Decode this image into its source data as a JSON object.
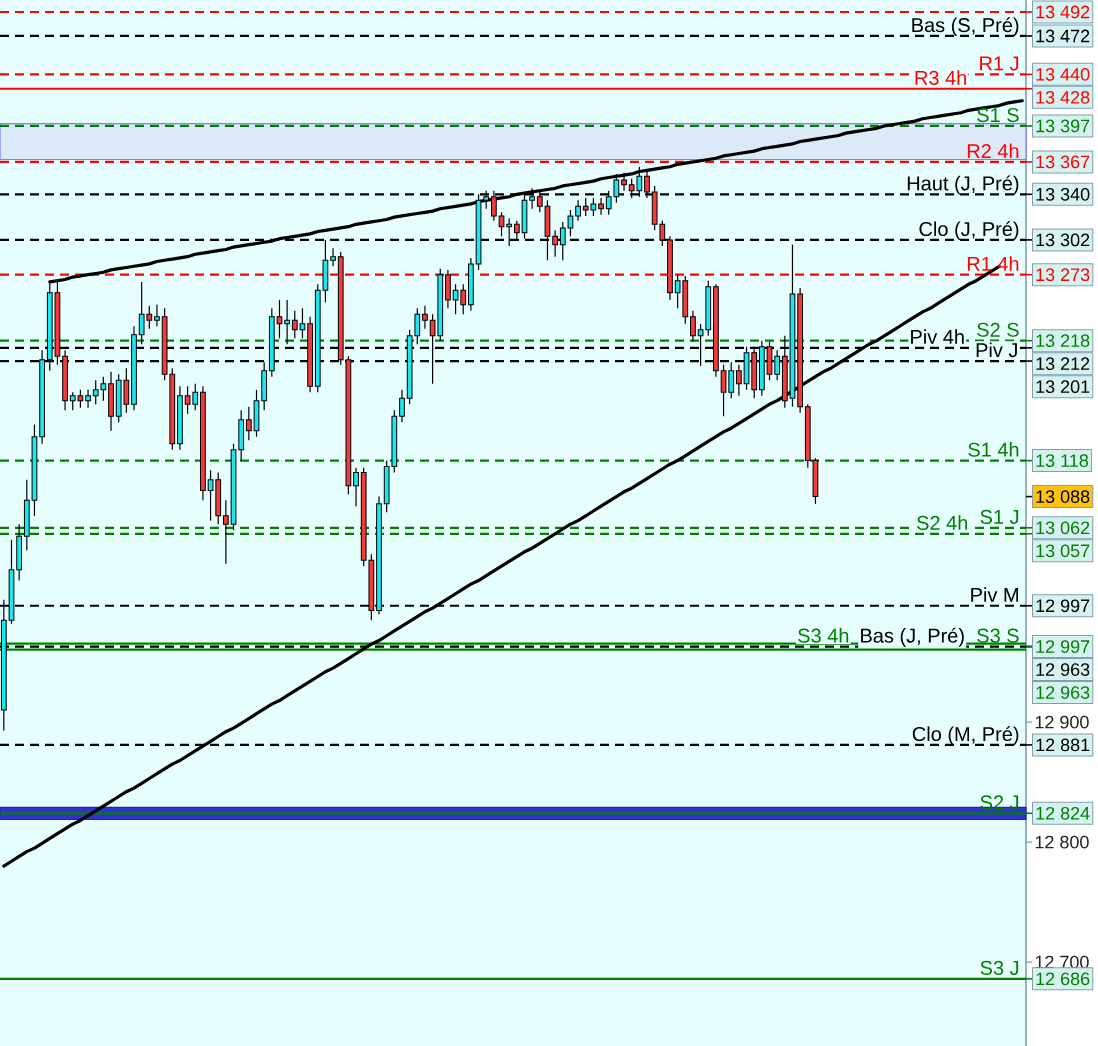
{
  "chart_data": {
    "type": "candlestick",
    "categories": [
      null,
      null,
      null,
      null,
      null,
      null,
      null,
      null,
      null,
      null,
      null,
      null,
      null,
      null,
      null,
      null,
      null,
      null,
      null,
      null,
      null,
      null,
      null,
      null,
      null,
      null,
      null,
      null,
      null,
      null,
      null,
      null,
      null,
      null,
      null,
      null,
      null,
      null,
      null,
      null,
      null,
      null,
      null,
      null,
      null,
      null,
      null,
      null,
      null,
      null,
      null,
      null,
      null,
      null,
      null,
      null,
      null,
      null,
      null,
      null,
      null,
      null,
      null,
      null,
      null,
      null,
      null,
      null,
      null,
      null,
      null,
      null,
      null,
      null,
      null,
      null,
      null,
      null,
      null,
      null,
      null,
      null,
      null,
      null,
      null,
      null,
      null,
      null,
      null,
      null,
      null,
      null,
      null,
      null,
      null,
      null,
      null,
      null,
      null,
      null,
      null,
      null,
      null,
      null,
      null,
      null,
      null,
      null,
      null,
      null,
      null,
      null,
      null,
      null,
      null,
      null,
      null,
      null,
      null,
      null,
      null,
      null,
      null,
      null,
      null,
      null,
      null,
      null,
      null,
      null,
      null,
      null,
      null,
      null
    ],
    "ohlc": [
      [
        12910,
        13002,
        12893,
        12985
      ],
      [
        12985,
        13052,
        12982,
        13027
      ],
      [
        13027,
        13065,
        13018,
        13055
      ],
      [
        13055,
        13102,
        13043,
        13085
      ],
      [
        13085,
        13148,
        13072,
        13138
      ],
      [
        13138,
        13210,
        13132,
        13202
      ],
      [
        13202,
        13267,
        13193,
        13258
      ],
      [
        13258,
        13267,
        13198,
        13205
      ],
      [
        13205,
        13210,
        13160,
        13168
      ],
      [
        13168,
        13175,
        13160,
        13172
      ],
      [
        13172,
        13177,
        13162,
        13168
      ],
      [
        13168,
        13177,
        13162,
        13172
      ],
      [
        13172,
        13185,
        13165,
        13177
      ],
      [
        13177,
        13188,
        13168,
        13182
      ],
      [
        13182,
        13192,
        13143,
        13155
      ],
      [
        13155,
        13190,
        13150,
        13185
      ],
      [
        13185,
        13195,
        13158,
        13165
      ],
      [
        13165,
        13230,
        13160,
        13223
      ],
      [
        13223,
        13267,
        13215,
        13240
      ],
      [
        13240,
        13247,
        13228,
        13235
      ],
      [
        13235,
        13248,
        13230,
        13238
      ],
      [
        13238,
        13245,
        13185,
        13190
      ],
      [
        13190,
        13195,
        13127,
        13132
      ],
      [
        13132,
        13180,
        13127,
        13172
      ],
      [
        13172,
        13180,
        13157,
        13165
      ],
      [
        13165,
        13182,
        13160,
        13175
      ],
      [
        13175,
        13180,
        13085,
        13093
      ],
      [
        13093,
        13110,
        13068,
        13102
      ],
      [
        13102,
        13108,
        13065,
        13072
      ],
      [
        13072,
        13085,
        13032,
        13065
      ],
      [
        13065,
        13132,
        13060,
        13127
      ],
      [
        13127,
        13160,
        13118,
        13152
      ],
      [
        13152,
        13163,
        13135,
        13143
      ],
      [
        13143,
        13177,
        13138,
        13168
      ],
      [
        13168,
        13200,
        13160,
        13193
      ],
      [
        13193,
        13245,
        13188,
        13238
      ],
      [
        13238,
        13252,
        13220,
        13232
      ],
      [
        13232,
        13252,
        13215,
        13235
      ],
      [
        13235,
        13243,
        13220,
        13227
      ],
      [
        13227,
        13245,
        13220,
        13232
      ],
      [
        13232,
        13238,
        13175,
        13180
      ],
      [
        13180,
        13265,
        13175,
        13260
      ],
      [
        13260,
        13302,
        13250,
        13285
      ],
      [
        13285,
        13295,
        13280,
        13288
      ],
      [
        13288,
        13292,
        13198,
        13202
      ],
      [
        13202,
        13205,
        13090,
        13097
      ],
      [
        13097,
        13112,
        13080,
        13108
      ],
      [
        13108,
        13112,
        13030,
        13035
      ],
      [
        13035,
        13040,
        12985,
        12993
      ],
      [
        12993,
        13088,
        12990,
        13082
      ],
      [
        13082,
        13118,
        13075,
        13113
      ],
      [
        13113,
        13160,
        13108,
        13155
      ],
      [
        13155,
        13177,
        13150,
        13170
      ],
      [
        13170,
        13227,
        13165,
        13222
      ],
      [
        13222,
        13245,
        13215,
        13240
      ],
      [
        13240,
        13247,
        13228,
        13235
      ],
      [
        13235,
        13240,
        13182,
        13222
      ],
      [
        13222,
        13278,
        13218,
        13273
      ],
      [
        13273,
        13277,
        13245,
        13252
      ],
      [
        13252,
        13265,
        13240,
        13260
      ],
      [
        13260,
        13265,
        13240,
        13248
      ],
      [
        13248,
        13287,
        13243,
        13282
      ],
      [
        13282,
        13340,
        13277,
        13335
      ],
      [
        13335,
        13343,
        13328,
        13338
      ],
      [
        13338,
        13343,
        13318,
        13322
      ],
      [
        13322,
        13325,
        13305,
        13313
      ],
      [
        13313,
        13320,
        13297,
        13315
      ],
      [
        13315,
        13318,
        13303,
        13308
      ],
      [
        13308,
        13340,
        13303,
        13335
      ],
      [
        13335,
        13345,
        13328,
        13338
      ],
      [
        13338,
        13342,
        13325,
        13330
      ],
      [
        13330,
        13335,
        13285,
        13305
      ],
      [
        13305,
        13310,
        13288,
        13298
      ],
      [
        13298,
        13317,
        13285,
        13312
      ],
      [
        13312,
        13327,
        13305,
        13322
      ],
      [
        13322,
        13335,
        13318,
        13330
      ],
      [
        13330,
        13337,
        13322,
        13327
      ],
      [
        13327,
        13337,
        13322,
        13332
      ],
      [
        13332,
        13337,
        13323,
        13328
      ],
      [
        13328,
        13343,
        13323,
        13338
      ],
      [
        13338,
        13357,
        13333,
        13352
      ],
      [
        13352,
        13358,
        13343,
        13348
      ],
      [
        13348,
        13353,
        13337,
        13343
      ],
      [
        13343,
        13363,
        13338,
        13355
      ],
      [
        13355,
        13360,
        13337,
        13342
      ],
      [
        13342,
        13347,
        13310,
        13315
      ],
      [
        13315,
        13318,
        13297,
        13302
      ],
      [
        13302,
        13305,
        13252,
        13258
      ],
      [
        13258,
        13273,
        13245,
        13268
      ],
      [
        13268,
        13272,
        13232,
        13238
      ],
      [
        13238,
        13243,
        13217,
        13222
      ],
      [
        13222,
        13232,
        13197,
        13227
      ],
      [
        13227,
        13268,
        13222,
        13263
      ],
      [
        13263,
        13265,
        13188,
        13193
      ],
      [
        13193,
        13198,
        13155,
        13175
      ],
      [
        13175,
        13200,
        13170,
        13193
      ],
      [
        13193,
        13198,
        13172,
        13182
      ],
      [
        13182,
        13213,
        13177,
        13208
      ],
      [
        13208,
        13212,
        13170,
        13177
      ],
      [
        13177,
        13218,
        13172,
        13213
      ],
      [
        13213,
        13217,
        13185,
        13190
      ],
      [
        13190,
        13210,
        13185,
        13205
      ],
      [
        13205,
        13222,
        13162,
        13168
      ],
      [
        13170,
        13298,
        13163,
        13257
      ],
      [
        13257,
        13262,
        13158,
        13163
      ],
      [
        13163,
        13165,
        13112,
        13118
      ],
      [
        13118,
        13120,
        13082,
        13088
      ],
      null,
      null,
      null,
      null,
      null,
      null,
      null,
      null,
      null,
      null,
      null,
      null,
      null,
      null,
      null,
      null,
      null,
      null,
      null,
      null,
      null,
      null,
      null,
      null,
      null,
      null,
      null
    ],
    "colors": [
      "#1ee6f0",
      "#1ee6f0",
      "#1ee6f0",
      "#1ee6f0",
      "#1ee6f0",
      "#1ee6f0",
      "#1ee6f0",
      "#f03c3c",
      "#f03c3c",
      "#1ee6f0",
      "#f03c3c",
      "#1ee6f0",
      "#1ee6f0",
      "#1ee6f0",
      "#f03c3c",
      "#1ee6f0",
      "#f03c3c",
      "#1ee6f0",
      "#1ee6f0",
      "#f03c3c",
      "#1ee6f0",
      "#f03c3c",
      "#f03c3c",
      "#1ee6f0",
      "#f03c3c",
      "#1ee6f0",
      "#f03c3c",
      "#1ee6f0",
      "#f03c3c",
      "#f03c3c",
      "#1ee6f0",
      "#1ee6f0",
      "#f03c3c",
      "#1ee6f0",
      "#1ee6f0",
      "#1ee6f0",
      "#f03c3c",
      "#1ee6f0",
      "#f03c3c",
      "#1ee6f0",
      "#f03c3c",
      "#1ee6f0",
      "#1ee6f0",
      "#1ee6f0",
      "#f03c3c",
      "#f03c3c",
      "#1ee6f0",
      "#f03c3c",
      "#f03c3c",
      "#1ee6f0",
      "#1ee6f0",
      "#1ee6f0",
      "#1ee6f0",
      "#1ee6f0",
      "#1ee6f0",
      "#f03c3c",
      "#f03c3c",
      "#1ee6f0",
      "#f03c3c",
      "#1ee6f0",
      "#f03c3c",
      "#1ee6f0",
      "#1ee6f0",
      "#1ee6f0",
      "#f03c3c",
      "#f03c3c",
      "#1ee6f0",
      "#f03c3c",
      "#1ee6f0",
      "#1ee6f0",
      "#f03c3c",
      "#f03c3c",
      "#f03c3c",
      "#1ee6f0",
      "#1ee6f0",
      "#1ee6f0",
      "#f03c3c",
      "#1ee6f0",
      "#f03c3c",
      "#1ee6f0",
      "#1ee6f0",
      "#f03c3c",
      "#f03c3c",
      "#1ee6f0",
      "#f03c3c",
      "#f03c3c",
      "#f03c3c",
      "#f03c3c",
      "#1ee6f0",
      "#f03c3c",
      "#f03c3c",
      "#1ee6f0",
      "#1ee6f0",
      "#f03c3c",
      "#f03c3c",
      "#1ee6f0",
      "#f03c3c",
      "#1ee6f0",
      "#f03c3c",
      "#1ee6f0",
      "#f03c3c",
      "#1ee6f0",
      "#f03c3c",
      "#1ee6f0",
      "#f03c3c",
      "#f03c3c",
      "#f03c3c",
      null,
      null,
      null,
      null,
      null,
      null,
      null,
      null,
      null,
      null,
      null,
      null,
      null,
      null,
      null,
      null,
      null,
      null,
      null,
      null,
      null,
      null,
      null,
      null,
      null,
      null,
      null
    ],
    "series": [
      {
        "type": "line",
        "color": "#000000",
        "values": [
          null,
          null,
          null,
          null,
          null,
          null,
          13267,
          13268,
          13269,
          13271,
          13272,
          13273,
          13274,
          13275,
          13277,
          13278,
          13279,
          13280,
          13281,
          13282,
          13284,
          13285,
          13286,
          13287,
          13288,
          13290,
          13291,
          13292,
          13293,
          13294,
          13296,
          13297,
          13298,
          13299,
          13300,
          13301,
          13303,
          13304,
          13305,
          13306,
          13307,
          13309,
          13310,
          13311,
          13312,
          13313,
          13315,
          13316,
          13317,
          13318,
          13319,
          13321,
          13322,
          13323,
          13324,
          13325,
          13326,
          13328,
          13329,
          13330,
          13331,
          13332,
          13334,
          13335,
          13336,
          13337,
          13338,
          13340,
          13341,
          13342,
          13343,
          13344,
          13345,
          13347,
          13348,
          13349,
          13350,
          13351,
          13353,
          13354,
          13355,
          13356,
          13357,
          13359,
          13360,
          13361,
          13362,
          13363,
          13365,
          13366,
          13367,
          13368,
          13369,
          13370,
          13372,
          13373,
          13374,
          13375,
          13376,
          13378,
          13379,
          13380,
          13381,
          13382,
          13384,
          13385,
          13386,
          13387,
          13388,
          13389,
          13391,
          13392,
          13393,
          13394,
          13395,
          13397,
          13398,
          13399,
          13400,
          13401,
          13403,
          13404,
          13405,
          13406,
          13407,
          13408,
          13410,
          13411,
          13412,
          13413,
          13414,
          13416,
          13417,
          13418
        ]
      },
      {
        "type": "line",
        "color": "#000000",
        "values": [
          12780,
          12784,
          12788,
          12792,
          12795,
          12799,
          12803,
          12807,
          12811,
          12815,
          12818,
          12822,
          12826,
          12830,
          12834,
          12838,
          12842,
          12845,
          12849,
          12853,
          12857,
          12861,
          12865,
          12868,
          12872,
          12876,
          12880,
          12884,
          12888,
          12892,
          12895,
          12899,
          12903,
          12907,
          12911,
          12915,
          12918,
          12922,
          12926,
          12930,
          12934,
          12938,
          12942,
          12945,
          12949,
          12953,
          12957,
          12961,
          12965,
          12968,
          12972,
          12976,
          12980,
          12984,
          12988,
          12992,
          12995,
          12999,
          13003,
          13007,
          13011,
          13015,
          13018,
          13022,
          13026,
          13030,
          13034,
          13038,
          13042,
          13045,
          13049,
          13053,
          13057,
          13061,
          13065,
          13068,
          13072,
          13076,
          13080,
          13084,
          13088,
          13092,
          13095,
          13099,
          13103,
          13107,
          13111,
          13115,
          13118,
          13122,
          13126,
          13130,
          13134,
          13138,
          13142,
          13145,
          13149,
          13153,
          13157,
          13161,
          13165,
          13168,
          13172,
          13176,
          13180,
          13184,
          13188,
          13192,
          13195,
          13199,
          13203,
          13207,
          13211,
          13215,
          13218,
          13222,
          13226,
          13230,
          13234,
          13238,
          13242,
          13245,
          13249,
          13253,
          13257,
          13261,
          13265,
          13268,
          13272,
          13276,
          13280,
          null,
          null,
          null
        ]
      }
    ],
    "ylim": [
      12630,
      13502
    ],
    "yticks": [
      {
        "value": 12700,
        "label": "12 700"
      },
      {
        "value": 12800,
        "label": "12 800"
      },
      {
        "value": 12900,
        "label": "12 900"
      }
    ],
    "tick_labels": "y",
    "bands": [
      {
        "axis": "y",
        "from": 13369,
        "to": 13399,
        "color": "#dce9f9"
      },
      {
        "axis": "y",
        "from": 12819,
        "to": 12829,
        "color": "#3333cc"
      }
    ],
    "ref_lines": [
      {
        "axis": "y",
        "value": 13492,
        "color": "#ff0000",
        "line_style": "dashed"
      },
      {
        "axis": "y",
        "value": 13472,
        "label": "Bas (S, Pré)",
        "color": "#000000",
        "line_style": "dashed"
      },
      {
        "axis": "y",
        "value": 13440,
        "label": "R1 J",
        "color": "#ff0000",
        "line_style": "dashed"
      },
      {
        "axis": "y",
        "value": 13428,
        "label": "R3 4h",
        "color": "#ff0000",
        "line_style": "solid"
      },
      {
        "axis": "y",
        "value": 13397,
        "label": "S1 S",
        "color": "#008000",
        "line_style": "dashed"
      },
      {
        "axis": "y",
        "value": 13367,
        "label": "R2 4h",
        "color": "#ff0000",
        "line_style": "dashed"
      },
      {
        "axis": "y",
        "value": 13340,
        "label": "Haut (J, Pré)",
        "color": "#000000",
        "line_style": "dashed"
      },
      {
        "axis": "y",
        "value": 13302,
        "label": "Clo (J, Pré)",
        "color": "#000000",
        "line_style": "dashed"
      },
      {
        "axis": "y",
        "value": 13273,
        "label": "R1 4h",
        "color": "#ff0000",
        "line_style": "dashed"
      },
      {
        "axis": "y",
        "value": 13218,
        "label": "S2 S",
        "color": "#008000",
        "line_style": "dashed"
      },
      {
        "axis": "y",
        "value": 13212,
        "label": "Piv 4h",
        "color": "#000000",
        "line_style": "dashed"
      },
      {
        "axis": "y",
        "value": 13201,
        "label": "Piv J",
        "color": "#000000",
        "line_style": "dashed"
      },
      {
        "axis": "y",
        "value": 13118,
        "label": "S1 4h",
        "color": "#008000",
        "line_style": "dashed"
      },
      {
        "axis": "y",
        "value": 13062,
        "label": "S1 J",
        "color": "#008000",
        "line_style": "dashed"
      },
      {
        "axis": "y",
        "value": 13057,
        "label": "S2 4h",
        "color": "#008000",
        "line_style": "dashed"
      },
      {
        "axis": "y",
        "value": 12997,
        "label": "Piv M",
        "color": "#000000",
        "line_style": "dashed"
      },
      {
        "axis": "y",
        "value": 12963,
        "label": "S3 S",
        "color": "#008000",
        "line_style": "solid"
      },
      {
        "axis": "y",
        "value": 12963,
        "label": "Bas (J, Pré)",
        "color": "#000000",
        "line_style": "dashed"
      },
      {
        "axis": "y",
        "value": 12963,
        "label": "S3 4h",
        "color": "#008000",
        "line_style": "solid"
      },
      {
        "axis": "y",
        "value": 12881,
        "label": "Clo (M, Pré)",
        "color": "#000000",
        "line_style": "dashed"
      },
      {
        "axis": "y",
        "value": 12824,
        "label": "S2 J",
        "color": "#008000",
        "line_style": "solid"
      },
      {
        "axis": "y",
        "value": 12686,
        "label": "S3 J",
        "color": "#008000",
        "line_style": "solid"
      }
    ],
    "annotations": [
      "13 492",
      "13 472",
      "13 440",
      "13 428",
      "13 397",
      "13 367",
      "13 340",
      "13 302",
      "13 273",
      "13 218",
      "13 212",
      "13 201",
      "13 118",
      "13 088",
      "13 062",
      "13 057",
      "12 997",
      "12 997",
      "12 963",
      "12 963",
      "12 881",
      "12 824",
      "12 686"
    ]
  }
}
